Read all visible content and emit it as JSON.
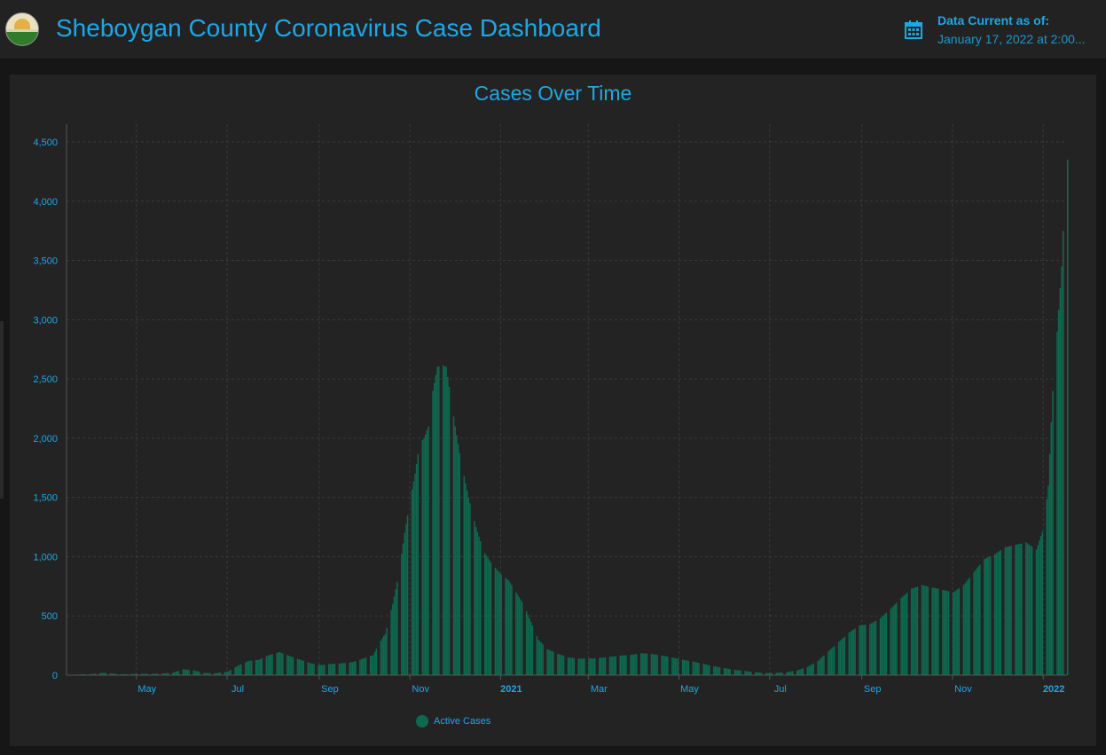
{
  "header": {
    "title": "Sheboygan County Coronavirus Case Dashboard",
    "data_current_label": "Data Current as of:",
    "data_current_value": "January 17, 2022 at 2:00..."
  },
  "icons": {
    "logo": "county-seal-icon",
    "calendar": "calendar-icon"
  },
  "colors": {
    "accent": "#1ea7e6",
    "bar": "#0e6a4f",
    "background": "#232323"
  },
  "chart_data": {
    "type": "bar",
    "title": "Cases Over Time",
    "xlabel": "",
    "ylabel": "",
    "ylim": [
      0,
      4500
    ],
    "yticks": [
      0,
      500,
      1000,
      1500,
      2000,
      2500,
      3000,
      3500,
      4000,
      4500
    ],
    "ytick_labels": [
      "0",
      "500",
      "1,000",
      "1,500",
      "2,000",
      "2,500",
      "3,000",
      "3,500",
      "4,000",
      "4,500"
    ],
    "xticks": [
      {
        "label": "May",
        "date": "2020-05-01",
        "bold": false
      },
      {
        "label": "Jul",
        "date": "2020-07-01",
        "bold": false
      },
      {
        "label": "Sep",
        "date": "2020-09-01",
        "bold": false
      },
      {
        "label": "Nov",
        "date": "2020-11-01",
        "bold": false
      },
      {
        "label": "2021",
        "date": "2021-01-01",
        "bold": true
      },
      {
        "label": "Mar",
        "date": "2021-03-01",
        "bold": false
      },
      {
        "label": "May",
        "date": "2021-05-01",
        "bold": false
      },
      {
        "label": "Jul",
        "date": "2021-07-01",
        "bold": false
      },
      {
        "label": "Sep",
        "date": "2021-09-01",
        "bold": false
      },
      {
        "label": "Nov",
        "date": "2021-11-01",
        "bold": false
      },
      {
        "label": "2022",
        "date": "2022-01-01",
        "bold": true
      }
    ],
    "x_range": [
      "2020-03-15",
      "2022-01-17"
    ],
    "grid": true,
    "legend_position": "bottom-left",
    "series": [
      {
        "name": "Active Cases",
        "points": [
          [
            "2020-03-15",
            2
          ],
          [
            "2020-04-01",
            10
          ],
          [
            "2020-04-08",
            20
          ],
          [
            "2020-04-20",
            8
          ],
          [
            "2020-05-01",
            10
          ],
          [
            "2020-05-15",
            12
          ],
          [
            "2020-05-25",
            20
          ],
          [
            "2020-06-01",
            50
          ],
          [
            "2020-06-08",
            40
          ],
          [
            "2020-06-15",
            20
          ],
          [
            "2020-06-22",
            15
          ],
          [
            "2020-07-01",
            30
          ],
          [
            "2020-07-08",
            80
          ],
          [
            "2020-07-15",
            120
          ],
          [
            "2020-07-22",
            130
          ],
          [
            "2020-07-29",
            170
          ],
          [
            "2020-08-05",
            195
          ],
          [
            "2020-08-12",
            160
          ],
          [
            "2020-08-19",
            130
          ],
          [
            "2020-08-26",
            100
          ],
          [
            "2020-09-02",
            85
          ],
          [
            "2020-09-09",
            95
          ],
          [
            "2020-09-16",
            100
          ],
          [
            "2020-09-23",
            110
          ],
          [
            "2020-09-30",
            140
          ],
          [
            "2020-10-07",
            170
          ],
          [
            "2020-10-10",
            250
          ],
          [
            "2020-10-15",
            350
          ],
          [
            "2020-10-20",
            600
          ],
          [
            "2020-10-24",
            850
          ],
          [
            "2020-10-28",
            1200
          ],
          [
            "2020-11-01",
            1500
          ],
          [
            "2020-11-04",
            1700
          ],
          [
            "2020-11-07",
            1950
          ],
          [
            "2020-11-10",
            2000
          ],
          [
            "2020-11-13",
            2100
          ],
          [
            "2020-11-16",
            2400
          ],
          [
            "2020-11-19",
            2600
          ],
          [
            "2020-11-22",
            2620
          ],
          [
            "2020-11-25",
            2600
          ],
          [
            "2020-11-28",
            2350
          ],
          [
            "2020-12-01",
            2100
          ],
          [
            "2020-12-05",
            1800
          ],
          [
            "2020-12-10",
            1500
          ],
          [
            "2020-12-15",
            1250
          ],
          [
            "2020-12-20",
            1050
          ],
          [
            "2020-12-25",
            950
          ],
          [
            "2021-01-01",
            850
          ],
          [
            "2021-01-06",
            800
          ],
          [
            "2021-01-11",
            700
          ],
          [
            "2021-01-16",
            600
          ],
          [
            "2021-01-21",
            450
          ],
          [
            "2021-01-26",
            300
          ],
          [
            "2021-02-01",
            220
          ],
          [
            "2021-02-08",
            180
          ],
          [
            "2021-02-15",
            150
          ],
          [
            "2021-02-22",
            140
          ],
          [
            "2021-03-01",
            140
          ],
          [
            "2021-03-08",
            145
          ],
          [
            "2021-03-15",
            155
          ],
          [
            "2021-03-22",
            165
          ],
          [
            "2021-03-29",
            170
          ],
          [
            "2021-04-05",
            185
          ],
          [
            "2021-04-12",
            180
          ],
          [
            "2021-04-19",
            165
          ],
          [
            "2021-04-26",
            150
          ],
          [
            "2021-05-03",
            130
          ],
          [
            "2021-05-10",
            115
          ],
          [
            "2021-05-17",
            95
          ],
          [
            "2021-05-24",
            75
          ],
          [
            "2021-05-31",
            60
          ],
          [
            "2021-06-07",
            45
          ],
          [
            "2021-06-14",
            35
          ],
          [
            "2021-06-21",
            25
          ],
          [
            "2021-06-28",
            18
          ],
          [
            "2021-07-05",
            20
          ],
          [
            "2021-07-12",
            25
          ],
          [
            "2021-07-19",
            40
          ],
          [
            "2021-07-26",
            70
          ],
          [
            "2021-08-02",
            120
          ],
          [
            "2021-08-09",
            200
          ],
          [
            "2021-08-16",
            280
          ],
          [
            "2021-08-23",
            360
          ],
          [
            "2021-08-30",
            420
          ],
          [
            "2021-09-06",
            430
          ],
          [
            "2021-09-13",
            480
          ],
          [
            "2021-09-20",
            560
          ],
          [
            "2021-09-27",
            650
          ],
          [
            "2021-10-04",
            730
          ],
          [
            "2021-10-11",
            760
          ],
          [
            "2021-10-18",
            740
          ],
          [
            "2021-10-25",
            720
          ],
          [
            "2021-11-01",
            700
          ],
          [
            "2021-11-08",
            760
          ],
          [
            "2021-11-15",
            870
          ],
          [
            "2021-11-22",
            980
          ],
          [
            "2021-11-29",
            1020
          ],
          [
            "2021-12-06",
            1080
          ],
          [
            "2021-12-13",
            1100
          ],
          [
            "2021-12-20",
            1120
          ],
          [
            "2021-12-27",
            1060
          ],
          [
            "2022-01-01",
            1250
          ],
          [
            "2022-01-04",
            1600
          ],
          [
            "2022-01-07",
            2400
          ],
          [
            "2022-01-10",
            2900
          ],
          [
            "2022-01-13",
            3450
          ],
          [
            "2022-01-16",
            4350
          ],
          [
            "2022-01-17",
            4350
          ]
        ]
      }
    ]
  },
  "legend": {
    "series_label": "Active Cases"
  }
}
